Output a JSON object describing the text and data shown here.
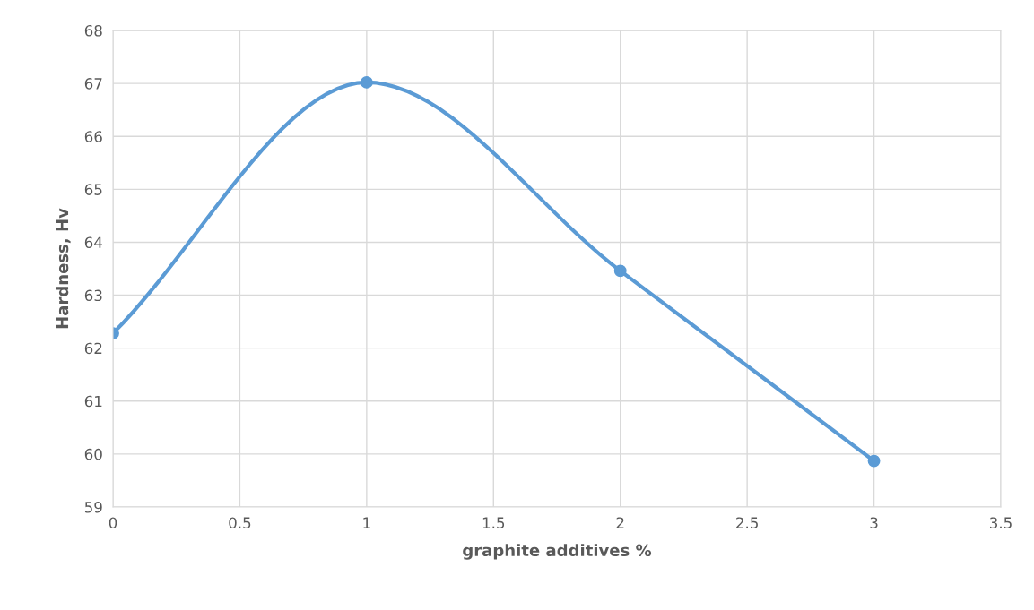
{
  "chart_data": {
    "type": "line",
    "xlabel": "graphite additives %",
    "ylabel": "Hardness, Hv",
    "x": [
      0,
      1,
      2,
      3
    ],
    "series": [
      {
        "color": "#5b9bd5",
        "values": [
          62.28,
          67.02,
          63.46,
          59.87
        ]
      }
    ],
    "xlim": [
      0,
      3.5
    ],
    "xticks": [
      0,
      0.5,
      1,
      1.5,
      2,
      2.5,
      3,
      3.5
    ],
    "ylim": [
      59,
      68
    ],
    "yticks": [
      59,
      60,
      61,
      62,
      63,
      64,
      65,
      66,
      67,
      68
    ],
    "grid": true,
    "marker": "circle",
    "line_style": "solid",
    "legend": false
  }
}
